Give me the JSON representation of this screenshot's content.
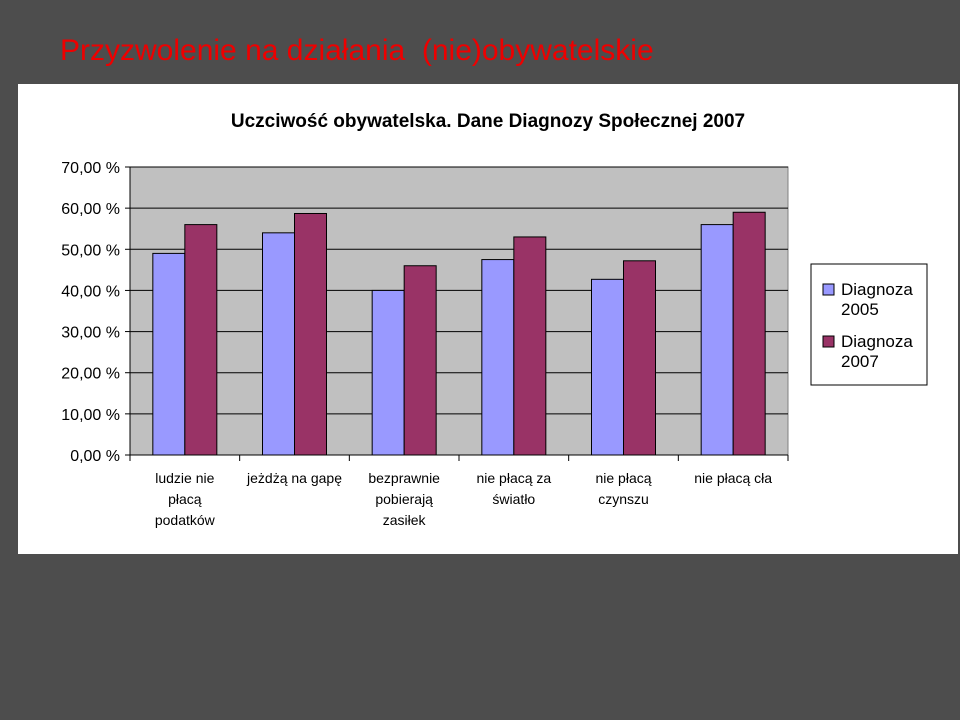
{
  "slide": {
    "title": "Przyzwolenie na działania  (nie)obywatelskie"
  },
  "chart_data": {
    "type": "bar",
    "title": "Uczciwość obywatelska. Dane Diagnozy Społecznej 2007",
    "xlabel": "",
    "ylabel": "",
    "ylim": [
      0,
      70
    ],
    "yticks": [
      0,
      10,
      20,
      30,
      40,
      50,
      60,
      70
    ],
    "ytick_labels": [
      "0,00 %",
      "10,00 %",
      "20,00 %",
      "30,00 %",
      "40,00 %",
      "50,00 %",
      "60,00 %",
      "70,00 %"
    ],
    "grid": true,
    "legend_position": "right",
    "categories": [
      [
        "ludzie nie",
        "płacą",
        "podatków"
      ],
      [
        "jeżdżą na gapę"
      ],
      [
        "bezprawnie",
        "pobierają",
        "zasiłek"
      ],
      [
        "nie płacą za",
        "światło"
      ],
      [
        "nie płacą",
        "czynszu"
      ],
      [
        "nie płacą cła"
      ]
    ],
    "series": [
      {
        "name": [
          "Diagnoza",
          "2005"
        ],
        "color": "#9999ff",
        "values": [
          49,
          54,
          40,
          47.5,
          42.7,
          56
        ]
      },
      {
        "name": [
          "Diagnoza",
          "2007"
        ],
        "color": "#993366",
        "values": [
          56,
          58.7,
          46,
          53,
          47.2,
          59
        ]
      }
    ],
    "plot_background": "#c0c0c0"
  }
}
